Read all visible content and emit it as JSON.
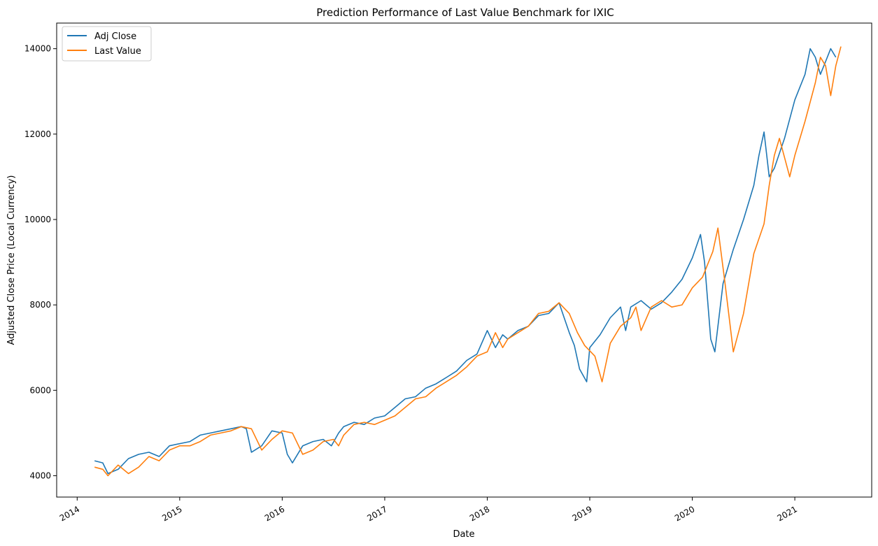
{
  "chart_data": {
    "type": "line",
    "title": "Prediction Performance of Last Value Benchmark for IXIC",
    "xlabel": "Date",
    "ylabel": "Adjusted Close Price (Local Currency)",
    "xlim": [
      2013.8,
      2021.75
    ],
    "ylim": [
      3500,
      14600
    ],
    "x_ticks": [
      {
        "value": 2014,
        "label": "2014"
      },
      {
        "value": 2015,
        "label": "2015"
      },
      {
        "value": 2016,
        "label": "2016"
      },
      {
        "value": 2017,
        "label": "2017"
      },
      {
        "value": 2018,
        "label": "2018"
      },
      {
        "value": 2019,
        "label": "2019"
      },
      {
        "value": 2020,
        "label": "2020"
      },
      {
        "value": 2021,
        "label": "2021"
      }
    ],
    "y_ticks": [
      {
        "value": 4000,
        "label": "4000"
      },
      {
        "value": 6000,
        "label": "6000"
      },
      {
        "value": 8000,
        "label": "8000"
      },
      {
        "value": 10000,
        "label": "10000"
      },
      {
        "value": 12000,
        "label": "12000"
      },
      {
        "value": 14000,
        "label": "14000"
      }
    ],
    "grid": false,
    "legend_position": "top-left",
    "series": [
      {
        "name": "Adj Close",
        "color": "#1f77b4",
        "x": [
          2014.17,
          2014.25,
          2014.3,
          2014.4,
          2014.5,
          2014.6,
          2014.7,
          2014.8,
          2014.9,
          2015.0,
          2015.1,
          2015.2,
          2015.3,
          2015.4,
          2015.5,
          2015.6,
          2015.65,
          2015.7,
          2015.8,
          2015.9,
          2016.0,
          2016.05,
          2016.1,
          2016.2,
          2016.3,
          2016.4,
          2016.48,
          2016.55,
          2016.6,
          2016.7,
          2016.8,
          2016.9,
          2017.0,
          2017.1,
          2017.2,
          2017.3,
          2017.4,
          2017.5,
          2017.6,
          2017.7,
          2017.8,
          2017.9,
          2018.0,
          2018.08,
          2018.15,
          2018.2,
          2018.3,
          2018.4,
          2018.5,
          2018.6,
          2018.7,
          2018.75,
          2018.8,
          2018.85,
          2018.9,
          2018.97,
          2019.0,
          2019.1,
          2019.2,
          2019.3,
          2019.35,
          2019.4,
          2019.5,
          2019.6,
          2019.7,
          2019.8,
          2019.9,
          2020.0,
          2020.08,
          2020.12,
          2020.18,
          2020.22,
          2020.3,
          2020.4,
          2020.5,
          2020.6,
          2020.65,
          2020.7,
          2020.75,
          2020.8,
          2020.9,
          2021.0,
          2021.1,
          2021.15,
          2021.2,
          2021.25,
          2021.3,
          2021.35,
          2021.4
        ],
        "values": [
          4350,
          4300,
          4050,
          4150,
          4400,
          4500,
          4550,
          4450,
          4700,
          4750,
          4800,
          4950,
          5000,
          5050,
          5100,
          5150,
          5100,
          4550,
          4700,
          5050,
          5000,
          4500,
          4300,
          4700,
          4800,
          4850,
          4700,
          5000,
          5150,
          5250,
          5200,
          5350,
          5400,
          5600,
          5800,
          5850,
          6050,
          6150,
          6300,
          6450,
          6700,
          6850,
          7400,
          7000,
          7300,
          7200,
          7400,
          7500,
          7750,
          7800,
          8050,
          7700,
          7350,
          7050,
          6500,
          6200,
          7000,
          7300,
          7700,
          7950,
          7400,
          7950,
          8100,
          7900,
          8050,
          8300,
          8600,
          9100,
          9650,
          9000,
          7200,
          6900,
          8500,
          9300,
          10000,
          10800,
          11500,
          12050,
          11000,
          11200,
          11900,
          12800,
          13400,
          14000,
          13800,
          13400,
          13700,
          14000,
          13800
        ]
      },
      {
        "name": "Last Value",
        "color": "#ff7f0e",
        "x": [
          2014.17,
          2014.25,
          2014.3,
          2014.4,
          2014.5,
          2014.6,
          2014.7,
          2014.8,
          2014.9,
          2015.0,
          2015.1,
          2015.2,
          2015.3,
          2015.4,
          2015.5,
          2015.6,
          2015.7,
          2015.8,
          2015.9,
          2016.0,
          2016.1,
          2016.2,
          2016.3,
          2016.4,
          2016.5,
          2016.55,
          2016.6,
          2016.7,
          2016.8,
          2016.9,
          2017.0,
          2017.1,
          2017.2,
          2017.3,
          2017.4,
          2017.5,
          2017.6,
          2017.7,
          2017.8,
          2017.9,
          2018.0,
          2018.08,
          2018.15,
          2018.2,
          2018.3,
          2018.4,
          2018.5,
          2018.6,
          2018.7,
          2018.8,
          2018.88,
          2018.95,
          2019.05,
          2019.12,
          2019.2,
          2019.3,
          2019.4,
          2019.45,
          2019.5,
          2019.6,
          2019.7,
          2019.8,
          2019.9,
          2020.0,
          2020.1,
          2020.2,
          2020.25,
          2020.32,
          2020.4,
          2020.5,
          2020.6,
          2020.7,
          2020.75,
          2020.8,
          2020.85,
          2020.95,
          2021.0,
          2021.1,
          2021.2,
          2021.25,
          2021.3,
          2021.35,
          2021.4,
          2021.45
        ],
        "values": [
          4200,
          4150,
          4000,
          4250,
          4050,
          4200,
          4450,
          4350,
          4600,
          4700,
          4700,
          4800,
          4950,
          5000,
          5050,
          5150,
          5100,
          4600,
          4850,
          5050,
          5000,
          4500,
          4600,
          4800,
          4850,
          4700,
          4950,
          5200,
          5250,
          5200,
          5300,
          5400,
          5600,
          5800,
          5850,
          6050,
          6200,
          6350,
          6550,
          6800,
          6900,
          7350,
          7000,
          7200,
          7350,
          7500,
          7800,
          7850,
          8050,
          7800,
          7350,
          7050,
          6800,
          6200,
          7100,
          7500,
          7700,
          7950,
          7400,
          7950,
          8100,
          7950,
          8000,
          8400,
          8650,
          9250,
          9800,
          8500,
          6900,
          7800,
          9200,
          9900,
          10800,
          11500,
          11900,
          11000,
          11500,
          12300,
          13200,
          13800,
          13600,
          12900,
          13600,
          14050
        ]
      }
    ]
  }
}
